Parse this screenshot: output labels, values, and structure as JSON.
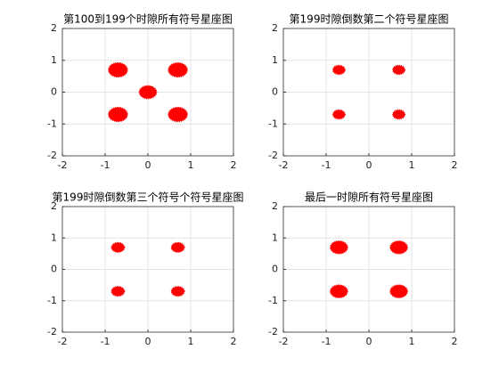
{
  "chart_data": [
    {
      "type": "scatter",
      "title": "第100到199个时隙所有符号星座图",
      "xlim": [
        -2,
        2
      ],
      "ylim": [
        -2,
        2
      ],
      "xticks": [
        -2,
        -1,
        0,
        1,
        2
      ],
      "yticks": [
        -2,
        -1,
        0,
        1,
        2
      ],
      "grid": true,
      "series": [
        {
          "color": "#ff0000",
          "x": [
            -0.7,
            0.7,
            0,
            -0.7,
            0.7
          ],
          "y": [
            0.7,
            0.7,
            0,
            -0.7,
            -0.7
          ],
          "radius": [
            0.22,
            0.22,
            0.2,
            0.22,
            0.22
          ]
        }
      ]
    },
    {
      "type": "scatter",
      "title": "第199时隙倒数第二个符号星座图",
      "xlim": [
        -2,
        2
      ],
      "ylim": [
        -2,
        2
      ],
      "xticks": [
        -2,
        -1,
        0,
        1,
        2
      ],
      "yticks": [
        -2,
        -1,
        0,
        1,
        2
      ],
      "grid": true,
      "series": [
        {
          "color": "#ff0000",
          "x": [
            -0.7,
            0.7,
            -0.7,
            0.7
          ],
          "y": [
            0.7,
            0.7,
            -0.7,
            -0.7
          ],
          "radius": [
            0.14,
            0.14,
            0.14,
            0.14
          ]
        }
      ]
    },
    {
      "type": "scatter",
      "title": "第199时隙倒数第三个符号个符号星座图",
      "xlim": [
        -2,
        2
      ],
      "ylim": [
        -2,
        2
      ],
      "xticks": [
        -2,
        -1,
        0,
        1,
        2
      ],
      "yticks": [
        -2,
        -1,
        0,
        1,
        2
      ],
      "grid": true,
      "series": [
        {
          "color": "#ff0000",
          "x": [
            -0.7,
            0.7,
            -0.7,
            0.7
          ],
          "y": [
            0.7,
            0.7,
            -0.7,
            -0.7
          ],
          "radius": [
            0.15,
            0.15,
            0.15,
            0.15
          ]
        }
      ]
    },
    {
      "type": "scatter",
      "title": "最后一时隙所有符号星座图",
      "xlim": [
        -2,
        2
      ],
      "ylim": [
        -2,
        2
      ],
      "xticks": [
        -2,
        -1,
        0,
        1,
        2
      ],
      "yticks": [
        -2,
        -1,
        0,
        1,
        2
      ],
      "grid": true,
      "series": [
        {
          "color": "#ff0000",
          "x": [
            -0.7,
            0.7,
            -0.7,
            0.7
          ],
          "y": [
            0.7,
            0.7,
            -0.7,
            -0.7
          ],
          "radius": [
            0.2,
            0.2,
            0.2,
            0.2
          ]
        }
      ]
    }
  ]
}
